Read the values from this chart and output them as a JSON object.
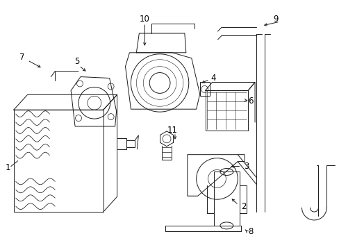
{
  "bg_color": "#ffffff",
  "line_color": "#1a1a1a",
  "label_color": "#000000",
  "fig_width": 4.89,
  "fig_height": 3.6,
  "dpi": 100,
  "lw": 0.7
}
